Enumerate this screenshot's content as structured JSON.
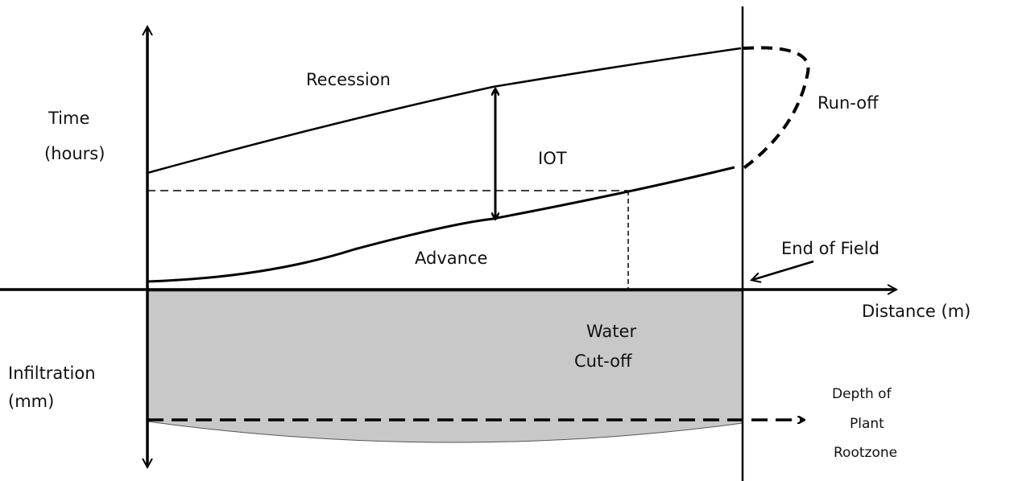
{
  "labels": {
    "recession": "Recession",
    "time": [
      "Time",
      "(hours)"
    ],
    "run_off": "Run-off",
    "iot": "IOT",
    "advance": "Advance",
    "end_of_field": "End of Field",
    "distance": "Distance (m)",
    "water_cut_off": [
      "Water",
      "Cut-off"
    ],
    "infiltration": [
      "Infiltration",
      "(mm)"
    ],
    "rootzone": [
      "Depth of",
      "Plant",
      "Rootzone"
    ]
  }
}
